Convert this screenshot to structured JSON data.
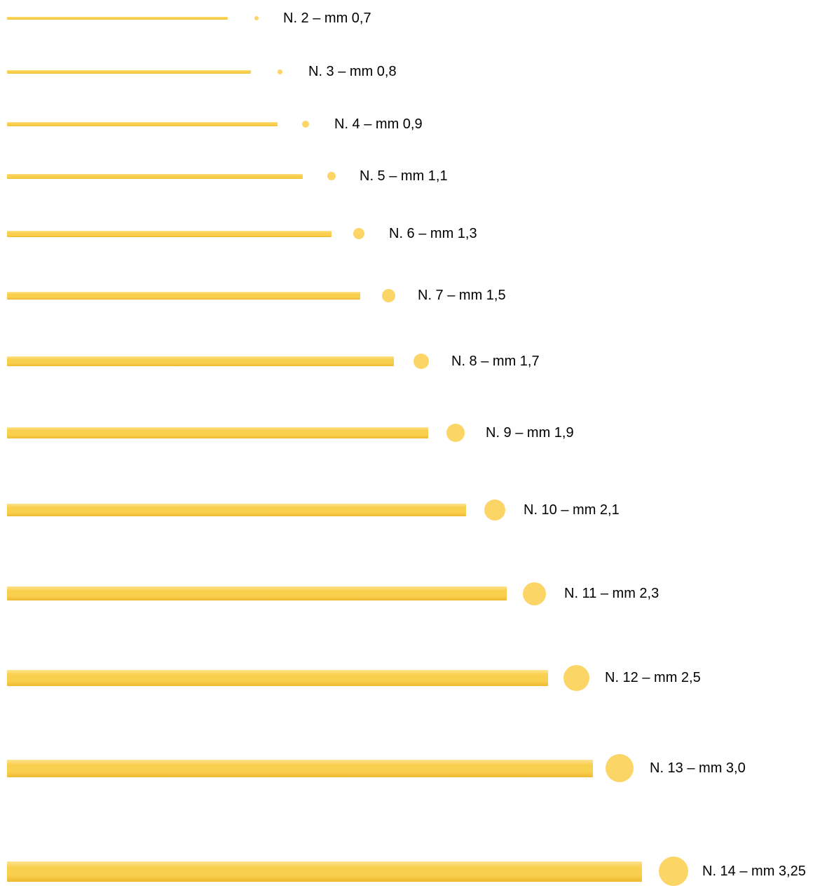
{
  "colors": {
    "pasta_main": "#F9CF4E",
    "pasta_light": "#FCE38E",
    "pasta_dark": "#EDB92F",
    "section": "#FCD567",
    "text": "#000000"
  },
  "sizes": [
    {
      "label": "N. 2 – mm 0,7",
      "diameter_mm": 0.7
    },
    {
      "label": "N. 3 – mm 0,8",
      "diameter_mm": 0.8
    },
    {
      "label": "N. 4 – mm 0,9",
      "diameter_mm": 0.9
    },
    {
      "label": "N. 5 – mm 1,1",
      "diameter_mm": 1.1
    },
    {
      "label": "N. 6 – mm 1,3",
      "diameter_mm": 1.3
    },
    {
      "label": "N. 7 – mm 1,5",
      "diameter_mm": 1.5
    },
    {
      "label": "N. 8 – mm 1,7",
      "diameter_mm": 1.7
    },
    {
      "label": "N. 9 – mm 1,9",
      "diameter_mm": 1.9
    },
    {
      "label": "N. 10 – mm 2,1",
      "diameter_mm": 2.1
    },
    {
      "label": "N. 11 – mm 2,3",
      "diameter_mm": 2.3
    },
    {
      "label": "N. 12 – mm 2,5",
      "diameter_mm": 2.5
    },
    {
      "label": "N. 13 – mm 3,0",
      "diameter_mm": 3.0
    },
    {
      "label": "N. 14 – mm 3,25",
      "diameter_mm": 3.25
    }
  ]
}
